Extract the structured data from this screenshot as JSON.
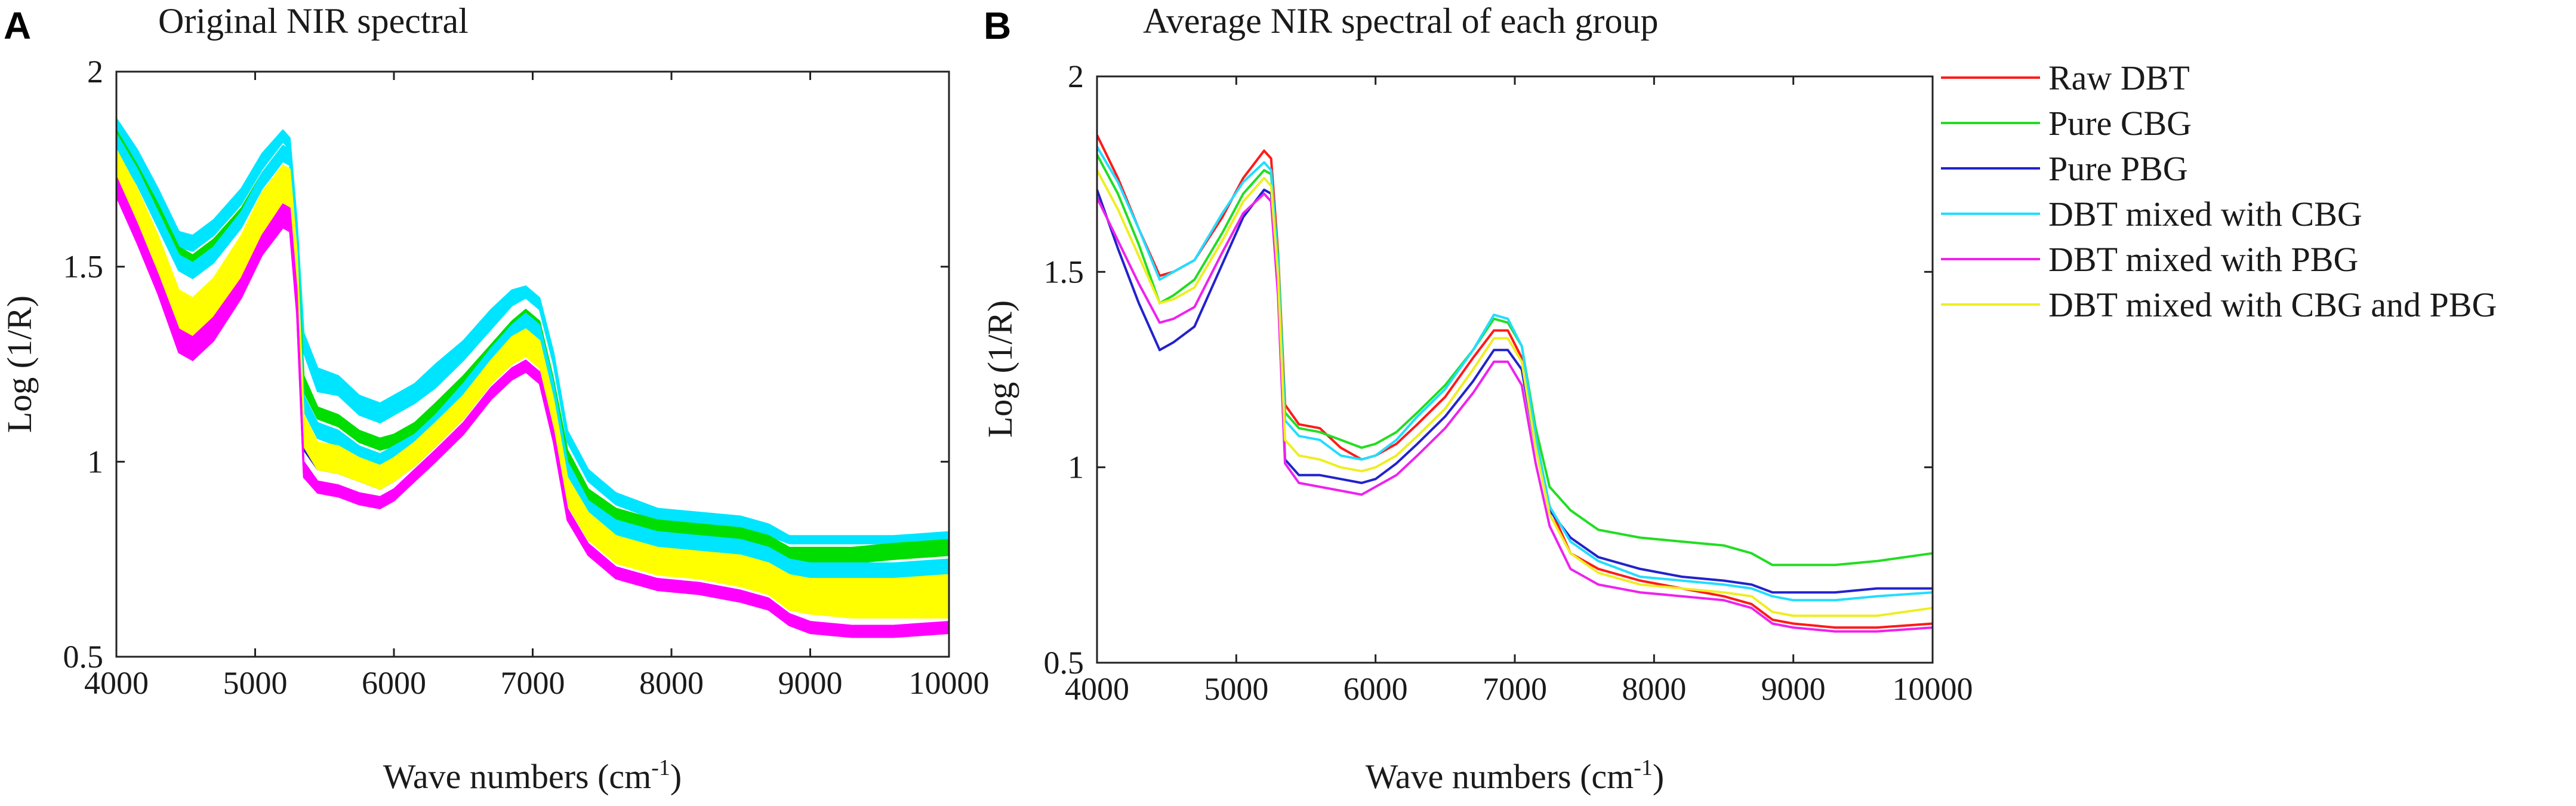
{
  "figure": {
    "panel_a_letter": "A",
    "panel_b_letter": "B"
  },
  "chart_data": [
    {
      "type": "line",
      "title": "Original NIR spectral",
      "xlabel": "Wave numbers (cm",
      "xlabel_sup": "-1",
      "xlabel_close": ")",
      "ylabel": "Log (1/R)",
      "xlim": [
        4000,
        10000
      ],
      "ylim": [
        0.5,
        2
      ],
      "xticks": [
        "4000",
        "5000",
        "6000",
        "7000",
        "8000",
        "9000",
        "10000"
      ],
      "yticks": [
        "0.5",
        "1",
        "1.5",
        "2"
      ],
      "x": [
        4000,
        4150,
        4300,
        4450,
        4550,
        4700,
        4900,
        5050,
        5200,
        5250,
        5300,
        5350,
        5450,
        5600,
        5750,
        5900,
        6000,
        6150,
        6300,
        6500,
        6700,
        6850,
        6950,
        7050,
        7150,
        7250,
        7400,
        7600,
        7900,
        8200,
        8500,
        8700,
        8850,
        9000,
        9300,
        9600,
        10000
      ],
      "series": [
        {
          "name": "Raw DBT",
          "color": "#00e5ff",
          "band": true,
          "count": 14,
          "lower": [
            1.82,
            1.74,
            1.64,
            1.55,
            1.54,
            1.58,
            1.66,
            1.75,
            1.82,
            1.8,
            1.58,
            1.28,
            1.18,
            1.17,
            1.12,
            1.1,
            1.12,
            1.15,
            1.19,
            1.26,
            1.34,
            1.4,
            1.42,
            1.39,
            1.25,
            1.05,
            0.95,
            0.89,
            0.85,
            0.84,
            0.83,
            0.81,
            0.79,
            0.79,
            0.79,
            0.79,
            0.79
          ],
          "upper": [
            1.88,
            1.8,
            1.7,
            1.59,
            1.58,
            1.62,
            1.7,
            1.79,
            1.85,
            1.83,
            1.62,
            1.33,
            1.24,
            1.22,
            1.17,
            1.15,
            1.17,
            1.2,
            1.25,
            1.31,
            1.39,
            1.44,
            1.45,
            1.42,
            1.28,
            1.08,
            0.98,
            0.92,
            0.88,
            0.87,
            0.86,
            0.84,
            0.81,
            0.81,
            0.81,
            0.81,
            0.82
          ]
        },
        {
          "name": "Pure CBG",
          "color": "#00dd00",
          "band": true,
          "count": 10,
          "lower": [
            1.83,
            1.74,
            1.63,
            1.52,
            1.5,
            1.54,
            1.62,
            1.71,
            1.78,
            1.77,
            1.55,
            1.18,
            1.11,
            1.09,
            1.05,
            1.03,
            1.04,
            1.07,
            1.12,
            1.19,
            1.27,
            1.33,
            1.36,
            1.33,
            1.18,
            1.0,
            0.9,
            0.85,
            0.82,
            0.81,
            0.8,
            0.78,
            0.75,
            0.74,
            0.74,
            0.75,
            0.76
          ],
          "upper": [
            1.85,
            1.76,
            1.66,
            1.55,
            1.53,
            1.57,
            1.65,
            1.74,
            1.81,
            1.8,
            1.58,
            1.22,
            1.14,
            1.12,
            1.08,
            1.06,
            1.07,
            1.1,
            1.15,
            1.22,
            1.3,
            1.36,
            1.39,
            1.36,
            1.21,
            1.03,
            0.93,
            0.88,
            0.85,
            0.84,
            0.83,
            0.81,
            0.78,
            0.78,
            0.78,
            0.79,
            0.8
          ]
        },
        {
          "name": "Pure PBG",
          "color": "#1a1acc",
          "band": true,
          "count": 6,
          "lower": [
            1.73,
            1.62,
            1.49,
            1.35,
            1.33,
            1.38,
            1.5,
            1.62,
            1.7,
            1.69,
            1.48,
            1.03,
            0.98,
            0.97,
            0.95,
            0.93,
            0.95,
            0.99,
            1.04,
            1.11,
            1.2,
            1.26,
            1.28,
            1.25,
            1.1,
            0.9,
            0.82,
            0.77,
            0.74,
            0.73,
            0.71,
            0.69,
            0.66,
            0.66,
            0.66,
            0.67,
            0.68
          ],
          "upper": [
            1.75,
            1.64,
            1.51,
            1.37,
            1.35,
            1.4,
            1.52,
            1.64,
            1.72,
            1.71,
            1.5,
            1.05,
            1.0,
            0.99,
            0.97,
            0.95,
            0.97,
            1.01,
            1.06,
            1.13,
            1.22,
            1.28,
            1.3,
            1.27,
            1.12,
            0.92,
            0.84,
            0.79,
            0.76,
            0.75,
            0.73,
            0.71,
            0.68,
            0.68,
            0.68,
            0.69,
            0.7
          ]
        },
        {
          "name": "DBT mixed with CBG",
          "color": "#00e5ff",
          "band": true,
          "count": 10,
          "lower": [
            1.8,
            1.71,
            1.6,
            1.49,
            1.47,
            1.51,
            1.6,
            1.7,
            1.77,
            1.76,
            1.54,
            1.13,
            1.06,
            1.04,
            1.0,
            0.98,
            1.0,
            1.03,
            1.08,
            1.16,
            1.25,
            1.31,
            1.34,
            1.31,
            1.16,
            0.96,
            0.86,
            0.81,
            0.78,
            0.77,
            0.76,
            0.74,
            0.71,
            0.7,
            0.7,
            0.7,
            0.71
          ],
          "upper": [
            1.84,
            1.75,
            1.64,
            1.53,
            1.51,
            1.55,
            1.64,
            1.74,
            1.81,
            1.8,
            1.58,
            1.17,
            1.1,
            1.08,
            1.04,
            1.02,
            1.04,
            1.07,
            1.12,
            1.2,
            1.29,
            1.35,
            1.38,
            1.35,
            1.2,
            1.0,
            0.9,
            0.85,
            0.82,
            0.81,
            0.8,
            0.78,
            0.75,
            0.74,
            0.74,
            0.74,
            0.75
          ]
        },
        {
          "name": "DBT mixed with CBG and PBG",
          "color": "#ffff00",
          "band": true,
          "count": 16,
          "lower": [
            1.71,
            1.6,
            1.48,
            1.33,
            1.31,
            1.36,
            1.47,
            1.58,
            1.66,
            1.65,
            1.45,
            1.04,
            0.98,
            0.97,
            0.95,
            0.93,
            0.95,
            0.99,
            1.04,
            1.11,
            1.2,
            1.25,
            1.27,
            1.24,
            1.09,
            0.89,
            0.8,
            0.74,
            0.71,
            0.7,
            0.68,
            0.66,
            0.62,
            0.61,
            0.6,
            0.6,
            0.6
          ],
          "upper": [
            1.8,
            1.7,
            1.58,
            1.44,
            1.42,
            1.47,
            1.58,
            1.69,
            1.76,
            1.75,
            1.54,
            1.12,
            1.05,
            1.04,
            1.01,
            0.99,
            1.01,
            1.05,
            1.1,
            1.17,
            1.26,
            1.32,
            1.34,
            1.31,
            1.16,
            0.96,
            0.87,
            0.81,
            0.78,
            0.77,
            0.76,
            0.74,
            0.71,
            0.7,
            0.7,
            0.7,
            0.71
          ]
        },
        {
          "name": "DBT mixed with PBG",
          "color": "#ff00ff",
          "band": true,
          "count": 10,
          "lower": [
            1.68,
            1.56,
            1.43,
            1.28,
            1.26,
            1.31,
            1.42,
            1.53,
            1.6,
            1.59,
            1.38,
            0.96,
            0.92,
            0.91,
            0.89,
            0.88,
            0.9,
            0.95,
            1.0,
            1.07,
            1.16,
            1.21,
            1.23,
            1.2,
            1.05,
            0.85,
            0.76,
            0.7,
            0.67,
            0.66,
            0.64,
            0.62,
            0.58,
            0.56,
            0.55,
            0.55,
            0.56
          ],
          "upper": [
            1.73,
            1.61,
            1.48,
            1.34,
            1.32,
            1.37,
            1.47,
            1.58,
            1.66,
            1.65,
            1.44,
            1.0,
            0.95,
            0.94,
            0.92,
            0.91,
            0.93,
            0.98,
            1.03,
            1.1,
            1.19,
            1.24,
            1.26,
            1.23,
            1.08,
            0.88,
            0.79,
            0.73,
            0.7,
            0.69,
            0.67,
            0.65,
            0.61,
            0.59,
            0.58,
            0.58,
            0.59
          ]
        }
      ]
    },
    {
      "type": "line",
      "title": "Average NIR spectral of each group",
      "xlabel": "Wave numbers (cm",
      "xlabel_sup": "-1",
      "xlabel_close": ")",
      "ylabel": "Log (1/R)",
      "xlim": [
        4000,
        10000
      ],
      "ylim": [
        0.5,
        2
      ],
      "xticks": [
        "4000",
        "5000",
        "6000",
        "7000",
        "8000",
        "9000",
        "10000"
      ],
      "yticks": [
        "0.5",
        "1",
        "1.5",
        "2"
      ],
      "legend": "right",
      "x": [
        4000,
        4150,
        4300,
        4450,
        4550,
        4700,
        4900,
        5050,
        5200,
        5250,
        5300,
        5350,
        5450,
        5600,
        5750,
        5900,
        6000,
        6150,
        6300,
        6500,
        6700,
        6850,
        6950,
        7050,
        7150,
        7250,
        7400,
        7600,
        7900,
        8200,
        8500,
        8700,
        8850,
        9000,
        9300,
        9600,
        10000
      ],
      "series": [
        {
          "name": "Raw DBT",
          "color": "#ff1a1a",
          "values": [
            1.85,
            1.74,
            1.61,
            1.49,
            1.5,
            1.53,
            1.64,
            1.74,
            1.81,
            1.79,
            1.55,
            1.16,
            1.11,
            1.1,
            1.05,
            1.02,
            1.03,
            1.06,
            1.11,
            1.18,
            1.28,
            1.35,
            1.35,
            1.28,
            1.05,
            0.9,
            0.78,
            0.74,
            0.71,
            0.69,
            0.67,
            0.65,
            0.61,
            0.6,
            0.59,
            0.59,
            0.6
          ]
        },
        {
          "name": "Pure CBG",
          "color": "#22dd22",
          "values": [
            1.8,
            1.7,
            1.57,
            1.42,
            1.44,
            1.48,
            1.6,
            1.7,
            1.76,
            1.75,
            1.54,
            1.14,
            1.1,
            1.09,
            1.07,
            1.05,
            1.06,
            1.09,
            1.14,
            1.21,
            1.3,
            1.38,
            1.37,
            1.31,
            1.1,
            0.95,
            0.89,
            0.84,
            0.82,
            0.81,
            0.8,
            0.78,
            0.75,
            0.75,
            0.75,
            0.76,
            0.78
          ]
        },
        {
          "name": "Pure PBG",
          "color": "#2222cc",
          "values": [
            1.71,
            1.56,
            1.42,
            1.3,
            1.32,
            1.36,
            1.52,
            1.64,
            1.71,
            1.7,
            1.48,
            1.02,
            0.98,
            0.98,
            0.97,
            0.96,
            0.97,
            1.01,
            1.06,
            1.13,
            1.22,
            1.3,
            1.3,
            1.25,
            1.05,
            0.89,
            0.82,
            0.77,
            0.74,
            0.72,
            0.71,
            0.7,
            0.68,
            0.68,
            0.68,
            0.69,
            0.69
          ]
        },
        {
          "name": "DBT mixed with CBG",
          "color": "#22ddff",
          "values": [
            1.82,
            1.73,
            1.61,
            1.48,
            1.5,
            1.53,
            1.65,
            1.73,
            1.78,
            1.76,
            1.52,
            1.12,
            1.08,
            1.07,
            1.03,
            1.02,
            1.03,
            1.07,
            1.13,
            1.2,
            1.3,
            1.39,
            1.38,
            1.31,
            1.08,
            0.9,
            0.81,
            0.76,
            0.72,
            0.71,
            0.7,
            0.69,
            0.67,
            0.66,
            0.66,
            0.67,
            0.68
          ]
        },
        {
          "name": "DBT mixed with PBG",
          "color": "#ee22ee",
          "values": [
            1.69,
            1.58,
            1.47,
            1.37,
            1.38,
            1.41,
            1.55,
            1.65,
            1.7,
            1.68,
            1.44,
            1.01,
            0.96,
            0.95,
            0.94,
            0.93,
            0.95,
            0.98,
            1.03,
            1.1,
            1.19,
            1.27,
            1.27,
            1.21,
            1.01,
            0.85,
            0.74,
            0.7,
            0.68,
            0.67,
            0.66,
            0.64,
            0.6,
            0.59,
            0.58,
            0.58,
            0.59
          ]
        },
        {
          "name": "DBT mixed with CBG and PBG",
          "color": "#eeee22",
          "values": [
            1.76,
            1.66,
            1.54,
            1.42,
            1.43,
            1.46,
            1.58,
            1.68,
            1.74,
            1.72,
            1.49,
            1.07,
            1.03,
            1.02,
            1.0,
            0.99,
            1.0,
            1.03,
            1.08,
            1.15,
            1.25,
            1.33,
            1.33,
            1.27,
            1.05,
            0.88,
            0.78,
            0.73,
            0.7,
            0.69,
            0.68,
            0.67,
            0.63,
            0.62,
            0.62,
            0.62,
            0.64
          ]
        }
      ]
    }
  ]
}
